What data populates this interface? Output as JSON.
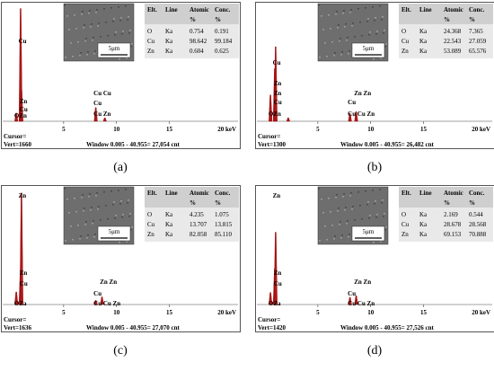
{
  "panels": [
    {
      "caption": "(a)",
      "xticks": [
        5,
        10,
        15
      ],
      "xtick_last": "20 keV",
      "xlim": [
        0,
        21.5
      ],
      "ylim": [
        0,
        1660
      ],
      "cursor": "Cursor=",
      "vert": "Vert=1660",
      "window": "Window 0.005 - 40.955= 27,054 cnt",
      "scale": "5μm",
      "table": {
        "header": [
          "Elt.",
          "Line",
          "Atomic",
          "Conc."
        ],
        "units": [
          "%",
          "%"
        ],
        "rows": [
          [
            "O",
            "Ka",
            "0.754",
            "0.191"
          ],
          [
            "Cu",
            "Ka",
            "98.642",
            "99.184"
          ],
          [
            "Zn",
            "Ka",
            "0.604",
            "0.625"
          ]
        ]
      },
      "labels": [
        {
          "text": "Cu",
          "energy": 0.9
        },
        {
          "text": "Zn",
          "energy": 1.0
        },
        {
          "text": "Cu",
          "energy": 1.0
        },
        {
          "text": "OZn",
          "energy": 0.5
        },
        {
          "text": "Cu Cu",
          "energy": 8.0
        },
        {
          "text": "Cu",
          "energy": 8.0
        },
        {
          "text": "Cu Zn",
          "energy": 8.0
        }
      ],
      "peaks": [
        {
          "energy": 0.52,
          "counts": 120
        },
        {
          "energy": 0.93,
          "counts": 1640
        },
        {
          "energy": 1.01,
          "counts": 450
        },
        {
          "energy": 8.04,
          "counts": 200
        },
        {
          "energy": 8.9,
          "counts": 50
        }
      ]
    },
    {
      "caption": "(b)",
      "xticks": [
        5,
        10,
        15
      ],
      "xtick_last": "20 keV",
      "xlim": [
        0,
        21.5
      ],
      "ylim": [
        0,
        1300
      ],
      "cursor": "Cursor=",
      "vert": "Vert=1300",
      "window": "Window 0.005 - 40.955= 26,482 cnt",
      "scale": "5μm",
      "table": {
        "header": [
          "Elt.",
          "Line",
          "Atomic",
          "Conc."
        ],
        "units": [
          "%",
          "%"
        ],
        "rows": [
          [
            "O",
            "Ka",
            "24.368",
            "7.365"
          ],
          [
            "Cu",
            "Ka",
            "22.543",
            "27.059"
          ],
          [
            "Zn",
            "Ka",
            "53.089",
            "65.576"
          ]
        ]
      },
      "labels": [
        {
          "text": "Cu",
          "energy": 0.9
        },
        {
          "text": "Zn",
          "energy": 1.0
        },
        {
          "text": "Zn",
          "energy": 1.0
        },
        {
          "text": "Cu",
          "energy": 1.0
        },
        {
          "text": "OZn",
          "energy": 0.5
        },
        {
          "text": "Zn Zn",
          "energy": 8.6
        },
        {
          "text": "Cu",
          "energy": 8.0
        },
        {
          "text": "Cu Cu Zn",
          "energy": 8.0
        }
      ],
      "peaks": [
        {
          "energy": 0.52,
          "counts": 300
        },
        {
          "energy": 0.93,
          "counts": 600
        },
        {
          "energy": 1.01,
          "counts": 850
        },
        {
          "energy": 2.2,
          "counts": 40
        },
        {
          "energy": 8.04,
          "counts": 90
        },
        {
          "energy": 8.63,
          "counts": 110
        }
      ]
    },
    {
      "caption": "(c)",
      "xticks": [
        5,
        10,
        15
      ],
      "xtick_last": "20 keV",
      "xlim": [
        0,
        21.5
      ],
      "ylim": [
        0,
        1636
      ],
      "cursor": "Cursor=",
      "vert": "Vert=1636",
      "window": "Window 0.005 - 40.955= 27,070 cnt",
      "scale": "5μm",
      "table": {
        "header": [
          "Elt.",
          "Line",
          "Atomic",
          "Conc."
        ],
        "units": [
          "%",
          "%"
        ],
        "rows": [
          [
            "O",
            "Ka",
            "4.235",
            "1.075"
          ],
          [
            "Cu",
            "Ka",
            "13.707",
            "13.815"
          ],
          [
            "Zn",
            "Ka",
            "82.058",
            "85.110"
          ]
        ]
      },
      "labels": [
        {
          "text": "Zn",
          "energy": 0.9
        },
        {
          "text": "Zn",
          "energy": 1.0
        },
        {
          "text": "Cu",
          "energy": 1.0
        },
        {
          "text": "OZa",
          "energy": 0.5
        },
        {
          "text": "Zn Zn",
          "energy": 8.6
        },
        {
          "text": "Cu",
          "energy": 8.0
        },
        {
          "text": "Cu Cu Zn",
          "energy": 8.0
        }
      ],
      "peaks": [
        {
          "energy": 0.52,
          "counts": 180
        },
        {
          "energy": 0.93,
          "counts": 500
        },
        {
          "energy": 1.01,
          "counts": 1600
        },
        {
          "energy": 8.04,
          "counts": 60
        },
        {
          "energy": 8.63,
          "counts": 110
        }
      ]
    },
    {
      "caption": "(d)",
      "xticks": [
        5,
        10,
        15
      ],
      "xtick_last": "20 keV",
      "xlim": [
        0,
        21.5
      ],
      "ylim": [
        0,
        1420
      ],
      "cursor": "Cursor=",
      "vert": "Vert=1420",
      "window": "Window 0.005 - 40.955= 27,526 cnt",
      "scale": "5μm",
      "table": {
        "header": [
          "Elt.",
          "Line",
          "Atomic",
          "Conc."
        ],
        "units": [
          "%",
          "%"
        ],
        "rows": [
          [
            "O",
            "Ka",
            "2.169",
            "0.544"
          ],
          [
            "Cu",
            "Ka",
            "28.678",
            "28.568"
          ],
          [
            "Zn",
            "Ka",
            "69.153",
            "70.888"
          ]
        ]
      },
      "labels": [
        {
          "text": "Zn",
          "energy": 0.9
        },
        {
          "text": "Zn",
          "energy": 1.0
        },
        {
          "text": "Cu",
          "energy": 1.0
        },
        {
          "text": "OZa",
          "energy": 0.5
        },
        {
          "text": "Zn Zn",
          "energy": 8.6
        },
        {
          "text": "Cu",
          "energy": 8.0
        },
        {
          "text": "Cu Cu Zn",
          "energy": 8.0
        }
      ],
      "peaks": [
        {
          "energy": 0.52,
          "counts": 150
        },
        {
          "energy": 0.93,
          "counts": 450
        },
        {
          "energy": 1.01,
          "counts": 900
        },
        {
          "energy": 8.04,
          "counts": 90
        },
        {
          "energy": 8.63,
          "counts": 110
        }
      ]
    }
  ]
}
